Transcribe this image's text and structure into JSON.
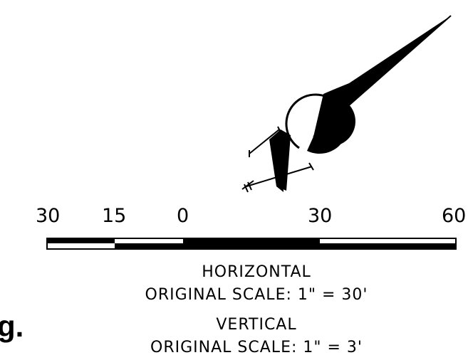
{
  "north_arrow": {
    "symbol": "north-arrow-icon"
  },
  "scale_bar": {
    "ticks": [
      "30",
      "15",
      "0",
      "30",
      "60"
    ]
  },
  "captions": {
    "horizontal_title": "HORIZONTAL",
    "horizontal_scale": "ORIGINAL SCALE:  1\"  =  30'",
    "vertical_title": "VERTICAL",
    "vertical_scale": "ORIGINAL SCALE:  1\"  =  3'"
  },
  "edge_fragment": "g."
}
